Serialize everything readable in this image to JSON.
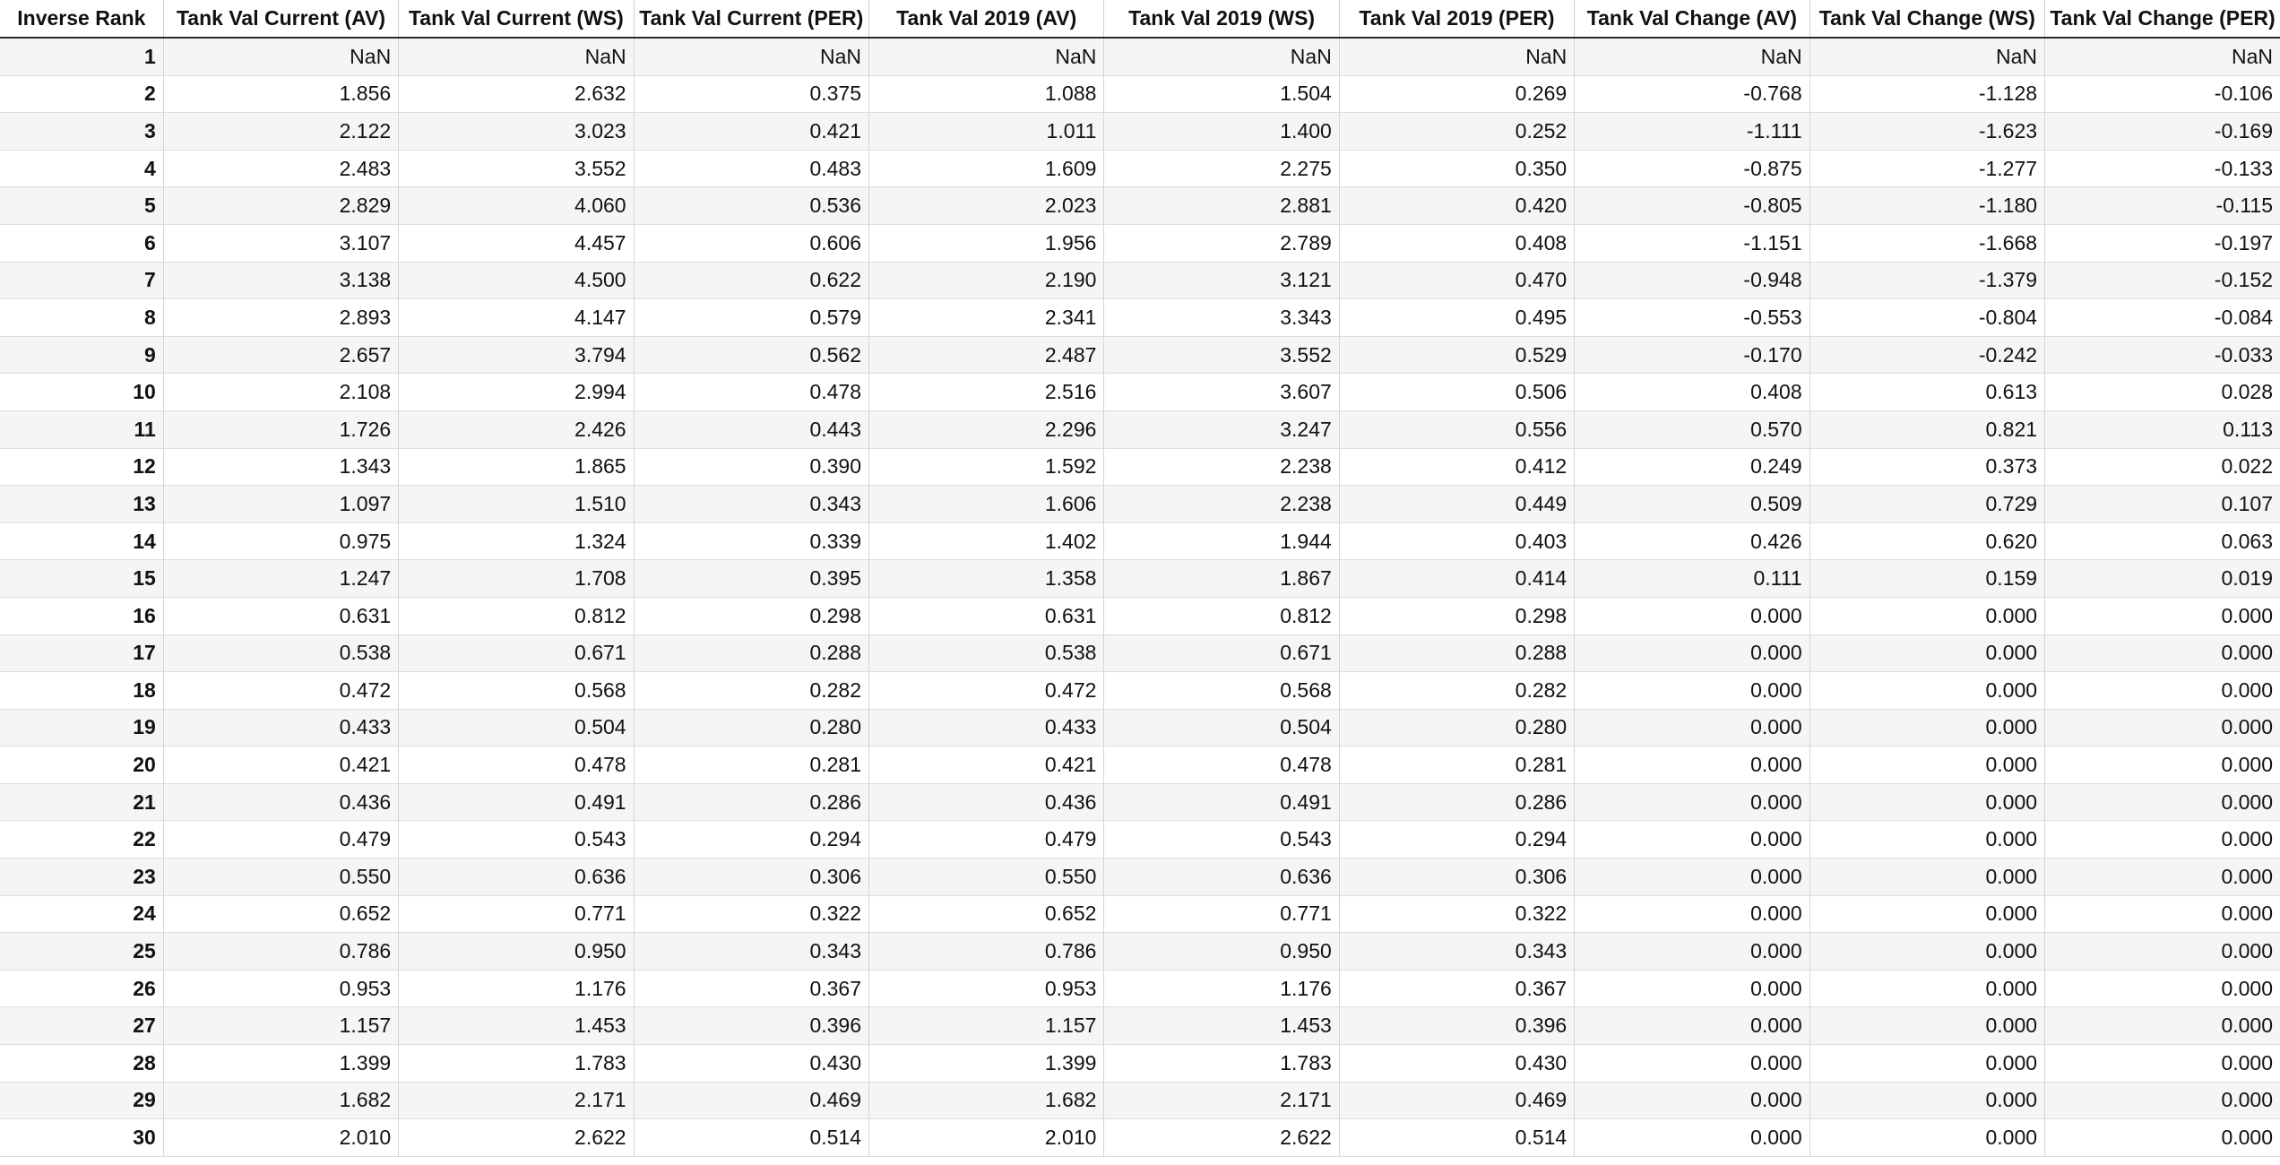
{
  "table": {
    "columns": [
      "Inverse Rank",
      "Tank Val Current (AV)",
      "Tank Val Current (WS)",
      "Tank Val Current (PER)",
      "Tank Val 2019 (AV)",
      "Tank Val 2019 (WS)",
      "Tank Val 2019 (PER)",
      "Tank Val Change (AV)",
      "Tank Val Change (WS)",
      "Tank Val Change (PER)"
    ],
    "rows": [
      [
        "1",
        "NaN",
        "NaN",
        "NaN",
        "NaN",
        "NaN",
        "NaN",
        "NaN",
        "NaN",
        "NaN"
      ],
      [
        "2",
        "1.856",
        "2.632",
        "0.375",
        "1.088",
        "1.504",
        "0.269",
        "-0.768",
        "-1.128",
        "-0.106"
      ],
      [
        "3",
        "2.122",
        "3.023",
        "0.421",
        "1.011",
        "1.400",
        "0.252",
        "-1.111",
        "-1.623",
        "-0.169"
      ],
      [
        "4",
        "2.483",
        "3.552",
        "0.483",
        "1.609",
        "2.275",
        "0.350",
        "-0.875",
        "-1.277",
        "-0.133"
      ],
      [
        "5",
        "2.829",
        "4.060",
        "0.536",
        "2.023",
        "2.881",
        "0.420",
        "-0.805",
        "-1.180",
        "-0.115"
      ],
      [
        "6",
        "3.107",
        "4.457",
        "0.606",
        "1.956",
        "2.789",
        "0.408",
        "-1.151",
        "-1.668",
        "-0.197"
      ],
      [
        "7",
        "3.138",
        "4.500",
        "0.622",
        "2.190",
        "3.121",
        "0.470",
        "-0.948",
        "-1.379",
        "-0.152"
      ],
      [
        "8",
        "2.893",
        "4.147",
        "0.579",
        "2.341",
        "3.343",
        "0.495",
        "-0.553",
        "-0.804",
        "-0.084"
      ],
      [
        "9",
        "2.657",
        "3.794",
        "0.562",
        "2.487",
        "3.552",
        "0.529",
        "-0.170",
        "-0.242",
        "-0.033"
      ],
      [
        "10",
        "2.108",
        "2.994",
        "0.478",
        "2.516",
        "3.607",
        "0.506",
        "0.408",
        "0.613",
        "0.028"
      ],
      [
        "11",
        "1.726",
        "2.426",
        "0.443",
        "2.296",
        "3.247",
        "0.556",
        "0.570",
        "0.821",
        "0.113"
      ],
      [
        "12",
        "1.343",
        "1.865",
        "0.390",
        "1.592",
        "2.238",
        "0.412",
        "0.249",
        "0.373",
        "0.022"
      ],
      [
        "13",
        "1.097",
        "1.510",
        "0.343",
        "1.606",
        "2.238",
        "0.449",
        "0.509",
        "0.729",
        "0.107"
      ],
      [
        "14",
        "0.975",
        "1.324",
        "0.339",
        "1.402",
        "1.944",
        "0.403",
        "0.426",
        "0.620",
        "0.063"
      ],
      [
        "15",
        "1.247",
        "1.708",
        "0.395",
        "1.358",
        "1.867",
        "0.414",
        "0.111",
        "0.159",
        "0.019"
      ],
      [
        "16",
        "0.631",
        "0.812",
        "0.298",
        "0.631",
        "0.812",
        "0.298",
        "0.000",
        "0.000",
        "0.000"
      ],
      [
        "17",
        "0.538",
        "0.671",
        "0.288",
        "0.538",
        "0.671",
        "0.288",
        "0.000",
        "0.000",
        "0.000"
      ],
      [
        "18",
        "0.472",
        "0.568",
        "0.282",
        "0.472",
        "0.568",
        "0.282",
        "0.000",
        "0.000",
        "0.000"
      ],
      [
        "19",
        "0.433",
        "0.504",
        "0.280",
        "0.433",
        "0.504",
        "0.280",
        "0.000",
        "0.000",
        "0.000"
      ],
      [
        "20",
        "0.421",
        "0.478",
        "0.281",
        "0.421",
        "0.478",
        "0.281",
        "0.000",
        "0.000",
        "0.000"
      ],
      [
        "21",
        "0.436",
        "0.491",
        "0.286",
        "0.436",
        "0.491",
        "0.286",
        "0.000",
        "0.000",
        "0.000"
      ],
      [
        "22",
        "0.479",
        "0.543",
        "0.294",
        "0.479",
        "0.543",
        "0.294",
        "0.000",
        "0.000",
        "0.000"
      ],
      [
        "23",
        "0.550",
        "0.636",
        "0.306",
        "0.550",
        "0.636",
        "0.306",
        "0.000",
        "0.000",
        "0.000"
      ],
      [
        "24",
        "0.652",
        "0.771",
        "0.322",
        "0.652",
        "0.771",
        "0.322",
        "0.000",
        "0.000",
        "0.000"
      ],
      [
        "25",
        "0.786",
        "0.950",
        "0.343",
        "0.786",
        "0.950",
        "0.343",
        "0.000",
        "0.000",
        "0.000"
      ],
      [
        "26",
        "0.953",
        "1.176",
        "0.367",
        "0.953",
        "1.176",
        "0.367",
        "0.000",
        "0.000",
        "0.000"
      ],
      [
        "27",
        "1.157",
        "1.453",
        "0.396",
        "1.157",
        "1.453",
        "0.396",
        "0.000",
        "0.000",
        "0.000"
      ],
      [
        "28",
        "1.399",
        "1.783",
        "0.430",
        "1.399",
        "1.783",
        "0.430",
        "0.000",
        "0.000",
        "0.000"
      ],
      [
        "29",
        "1.682",
        "2.171",
        "0.469",
        "1.682",
        "2.171",
        "0.469",
        "0.000",
        "0.000",
        "0.000"
      ],
      [
        "30",
        "2.010",
        "2.622",
        "0.514",
        "2.010",
        "2.622",
        "0.514",
        "0.000",
        "0.000",
        "0.000"
      ]
    ]
  }
}
